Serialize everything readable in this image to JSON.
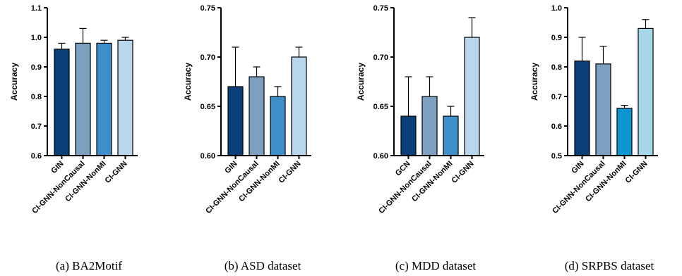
{
  "chart_data": [
    {
      "type": "bar",
      "caption": "(a) BA2Motif",
      "ylabel": "Accuracy",
      "ylim": [
        0.6,
        1.1
      ],
      "yticks": [
        "0.6",
        "0.7",
        "0.8",
        "0.9",
        "1.0",
        "1.1"
      ],
      "categories": [
        "GIN",
        "CI-GNN-NonCausal",
        "CI-GNN-NonMI",
        "CI-GNN"
      ],
      "values": [
        0.96,
        0.98,
        0.98,
        0.99
      ],
      "errors": [
        0.02,
        0.05,
        0.01,
        0.01
      ],
      "colors": [
        "#0b3f7a",
        "#7d9fc0",
        "#3e8fc9",
        "#b9d7ec"
      ]
    },
    {
      "type": "bar",
      "caption": "(b) ASD dataset",
      "ylabel": "Accuracy",
      "ylim": [
        0.6,
        0.75
      ],
      "yticks": [
        "0.60",
        "0.65",
        "0.70",
        "0.75"
      ],
      "categories": [
        "GIN",
        "CI-GNN-NonCausal",
        "CI-GNN-NonMI",
        "CI-GNN"
      ],
      "values": [
        0.67,
        0.68,
        0.66,
        0.7
      ],
      "errors": [
        0.04,
        0.01,
        0.01,
        0.01
      ],
      "colors": [
        "#0b3f7a",
        "#7d9fc0",
        "#3e8fc9",
        "#b9d7ec"
      ]
    },
    {
      "type": "bar",
      "caption": "(c) MDD dataset",
      "ylabel": "Accuracy",
      "ylim": [
        0.6,
        0.75
      ],
      "yticks": [
        "0.60",
        "0.65",
        "0.70",
        "0.75"
      ],
      "categories": [
        "GCN",
        "CI-GNN-NonCausal",
        "CI-GNN-NonMI",
        "CI-GNN"
      ],
      "values": [
        0.64,
        0.66,
        0.64,
        0.72
      ],
      "errors": [
        0.04,
        0.02,
        0.01,
        0.02
      ],
      "colors": [
        "#0b3f7a",
        "#7d9fc0",
        "#3e8fc9",
        "#b9d7ec"
      ]
    },
    {
      "type": "bar",
      "caption": "(d) SRPBS dataset",
      "ylabel": "Accuracy",
      "ylim": [
        0.5,
        1.0
      ],
      "yticks": [
        "0.5",
        "0.6",
        "0.7",
        "0.8",
        "0.9",
        "1.0"
      ],
      "categories": [
        "GIN",
        "CI-GNN-NonCausal",
        "CI-GNN-NonMI",
        "CI-GNN"
      ],
      "values": [
        0.82,
        0.81,
        0.66,
        0.93
      ],
      "errors": [
        0.08,
        0.06,
        0.01,
        0.03
      ],
      "colors": [
        "#0b3f7a",
        "#7d9fc0",
        "#0f95d1",
        "#a7d7ea"
      ]
    }
  ]
}
